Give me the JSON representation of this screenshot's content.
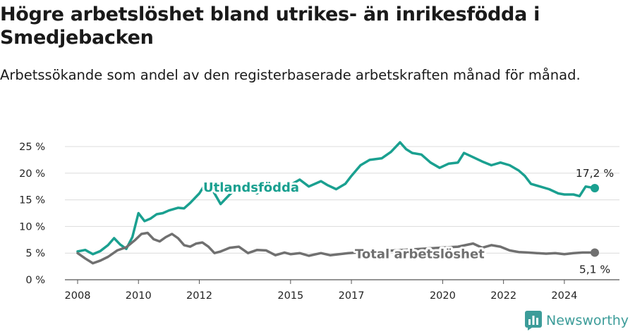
{
  "header": {
    "title": "Högre arbetslöshet bland utrikes- än inrikesfödda i Smedjebacken",
    "subtitle": "Arbetssökande som andel av den registerbaserade arbetskraften månad för månad."
  },
  "brand": {
    "name": "Newsworthy",
    "icon": "bar-chart-logo-icon",
    "color": "#3c9c99"
  },
  "chart_data": {
    "type": "line",
    "title": "Högre arbetslöshet bland utrikes- än inrikesfödda i Smedjebacken",
    "xlabel": "",
    "ylabel": "",
    "xlim": [
      2008,
      2025.2
    ],
    "ylim": [
      0,
      25
    ],
    "y_ticks": [
      0,
      5,
      10,
      15,
      20,
      25
    ],
    "y_tick_labels": [
      "0 %",
      "5 %",
      "10 %",
      "15 %",
      "20 %",
      "25 %"
    ],
    "x_ticks": [
      2008,
      2010,
      2012,
      2015,
      2017,
      2020,
      2022,
      2024
    ],
    "x_tick_labels": [
      "2008",
      "2010",
      "2012",
      "2015",
      "2017",
      "2020",
      "2022",
      "2024"
    ],
    "grid": true,
    "series": [
      {
        "name": "Utlandsfödda",
        "color": "#1aa090",
        "end_label": "17,2 %",
        "points": [
          [
            2008.0,
            5.3
          ],
          [
            2008.25,
            5.6
          ],
          [
            2008.5,
            4.8
          ],
          [
            2008.75,
            5.4
          ],
          [
            2009.0,
            6.5
          ],
          [
            2009.2,
            7.8
          ],
          [
            2009.4,
            6.6
          ],
          [
            2009.6,
            5.8
          ],
          [
            2009.8,
            8.0
          ],
          [
            2010.0,
            12.5
          ],
          [
            2010.2,
            11.0
          ],
          [
            2010.4,
            11.5
          ],
          [
            2010.6,
            12.3
          ],
          [
            2010.8,
            12.5
          ],
          [
            2011.0,
            13.0
          ],
          [
            2011.3,
            13.5
          ],
          [
            2011.5,
            13.4
          ],
          [
            2011.7,
            14.4
          ],
          [
            2012.0,
            16.2
          ],
          [
            2012.2,
            18.0
          ],
          [
            2012.4,
            17.2
          ],
          [
            2012.7,
            14.2
          ],
          [
            2013.0,
            16.0
          ],
          [
            2013.3,
            17.5
          ],
          [
            2013.6,
            17.0
          ],
          [
            2013.9,
            16.2
          ],
          [
            2014.2,
            17.5
          ],
          [
            2014.5,
            16.8
          ],
          [
            2014.8,
            17.0
          ],
          [
            2015.0,
            17.8
          ],
          [
            2015.3,
            18.8
          ],
          [
            2015.6,
            17.5
          ],
          [
            2016.0,
            18.5
          ],
          [
            2016.2,
            17.8
          ],
          [
            2016.5,
            17.0
          ],
          [
            2016.8,
            18.0
          ],
          [
            2017.0,
            19.5
          ],
          [
            2017.3,
            21.5
          ],
          [
            2017.6,
            22.5
          ],
          [
            2018.0,
            22.8
          ],
          [
            2018.3,
            24.0
          ],
          [
            2018.6,
            25.8
          ],
          [
            2018.8,
            24.5
          ],
          [
            2019.0,
            23.8
          ],
          [
            2019.3,
            23.5
          ],
          [
            2019.6,
            22.0
          ],
          [
            2019.9,
            21.0
          ],
          [
            2020.2,
            21.8
          ],
          [
            2020.5,
            22.0
          ],
          [
            2020.7,
            23.8
          ],
          [
            2021.0,
            23.0
          ],
          [
            2021.3,
            22.2
          ],
          [
            2021.6,
            21.5
          ],
          [
            2021.9,
            22.0
          ],
          [
            2022.2,
            21.5
          ],
          [
            2022.5,
            20.5
          ],
          [
            2022.7,
            19.5
          ],
          [
            2022.9,
            18.0
          ],
          [
            2023.2,
            17.5
          ],
          [
            2023.5,
            17.0
          ],
          [
            2023.8,
            16.2
          ],
          [
            2024.0,
            16.0
          ],
          [
            2024.3,
            16.0
          ],
          [
            2024.5,
            15.7
          ],
          [
            2024.7,
            17.5
          ],
          [
            2025.0,
            17.2
          ]
        ]
      },
      {
        "name": "Total arbetslöshet",
        "color": "#707070",
        "end_label": "5,1 %",
        "points": [
          [
            2008.0,
            5.0
          ],
          [
            2008.25,
            4.0
          ],
          [
            2008.5,
            3.1
          ],
          [
            2008.75,
            3.6
          ],
          [
            2009.0,
            4.3
          ],
          [
            2009.3,
            5.5
          ],
          [
            2009.6,
            6.1
          ],
          [
            2009.9,
            7.5
          ],
          [
            2010.1,
            8.6
          ],
          [
            2010.3,
            8.8
          ],
          [
            2010.5,
            7.6
          ],
          [
            2010.7,
            7.2
          ],
          [
            2010.9,
            8.0
          ],
          [
            2011.1,
            8.6
          ],
          [
            2011.3,
            7.8
          ],
          [
            2011.5,
            6.5
          ],
          [
            2011.7,
            6.2
          ],
          [
            2011.9,
            6.8
          ],
          [
            2012.1,
            7.0
          ],
          [
            2012.3,
            6.2
          ],
          [
            2012.5,
            5.0
          ],
          [
            2012.7,
            5.3
          ],
          [
            2013.0,
            6.0
          ],
          [
            2013.3,
            6.2
          ],
          [
            2013.6,
            5.0
          ],
          [
            2013.9,
            5.6
          ],
          [
            2014.2,
            5.5
          ],
          [
            2014.5,
            4.6
          ],
          [
            2014.8,
            5.1
          ],
          [
            2015.0,
            4.8
          ],
          [
            2015.3,
            5.0
          ],
          [
            2015.6,
            4.5
          ],
          [
            2016.0,
            5.0
          ],
          [
            2016.3,
            4.6
          ],
          [
            2016.6,
            4.8
          ],
          [
            2016.9,
            5.0
          ],
          [
            2020.5,
            6.2
          ],
          [
            2021.0,
            6.8
          ],
          [
            2021.3,
            6.0
          ],
          [
            2021.6,
            6.5
          ],
          [
            2021.9,
            6.2
          ],
          [
            2022.2,
            5.5
          ],
          [
            2022.5,
            5.2
          ],
          [
            2022.8,
            5.1
          ],
          [
            2023.1,
            5.0
          ],
          [
            2023.4,
            4.9
          ],
          [
            2023.7,
            5.0
          ],
          [
            2024.0,
            4.8
          ],
          [
            2024.3,
            5.0
          ],
          [
            2024.6,
            5.1
          ],
          [
            2025.0,
            5.1
          ]
        ]
      }
    ]
  }
}
